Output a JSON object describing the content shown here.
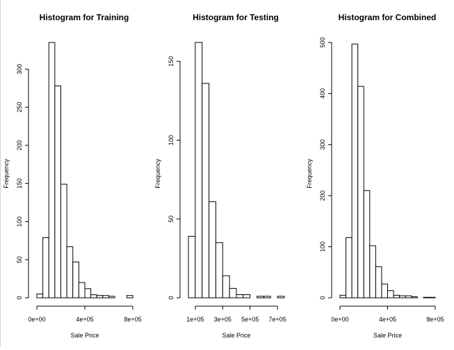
{
  "chart_data": [
    {
      "type": "bar",
      "title": "Histogram for Training",
      "xlabel": "Sale Price",
      "ylabel": "Frequency",
      "bin_start": 0,
      "bin_width": 50000,
      "values": [
        5,
        79,
        335,
        278,
        149,
        67,
        47,
        20,
        12,
        4,
        3,
        3,
        2,
        0,
        0,
        3
      ],
      "xlim": [
        0,
        800000
      ],
      "ylim": [
        0,
        335
      ],
      "x_ticks": [
        0,
        400000,
        800000
      ],
      "x_tick_labels": [
        "0e+00",
        "4e+05",
        "8e+05"
      ],
      "y_ticks": [
        0,
        50,
        100,
        150,
        200,
        250,
        300
      ],
      "y_tick_labels": [
        "0",
        "50",
        "100",
        "150",
        "200",
        "250",
        "300"
      ]
    },
    {
      "type": "bar",
      "title": "Histogram for Testing",
      "xlabel": "Sale Price",
      "ylabel": "Frequency",
      "bin_start": 50000,
      "bin_width": 50000,
      "values": [
        39,
        162,
        136,
        61,
        35,
        14,
        6,
        2,
        2,
        0,
        1,
        1,
        0,
        1
      ],
      "xlim": [
        50000,
        750000
      ],
      "ylim": [
        0,
        162
      ],
      "x_ticks": [
        100000,
        300000,
        500000,
        700000
      ],
      "x_tick_labels": [
        "1e+05",
        "3e+05",
        "5e+05",
        "7e+05"
      ],
      "y_ticks": [
        0,
        50,
        100,
        150
      ],
      "y_tick_labels": [
        "0",
        "50",
        "100",
        "150"
      ]
    },
    {
      "type": "bar",
      "title": "Histogram for Combined",
      "xlabel": "Sale Price",
      "ylabel": "Frequency",
      "bin_start": 0,
      "bin_width": 50000,
      "values": [
        5,
        118,
        497,
        414,
        210,
        102,
        61,
        27,
        14,
        5,
        4,
        4,
        2,
        0,
        1,
        1
      ],
      "xlim": [
        0,
        800000
      ],
      "ylim": [
        0,
        500
      ],
      "x_ticks": [
        0,
        400000,
        800000
      ],
      "x_tick_labels": [
        "0e+00",
        "4e+05",
        "8e+05"
      ],
      "y_ticks": [
        0,
        100,
        200,
        300,
        400,
        500
      ],
      "y_tick_labels": [
        "0",
        "100",
        "200",
        "300",
        "400",
        "500"
      ]
    }
  ]
}
